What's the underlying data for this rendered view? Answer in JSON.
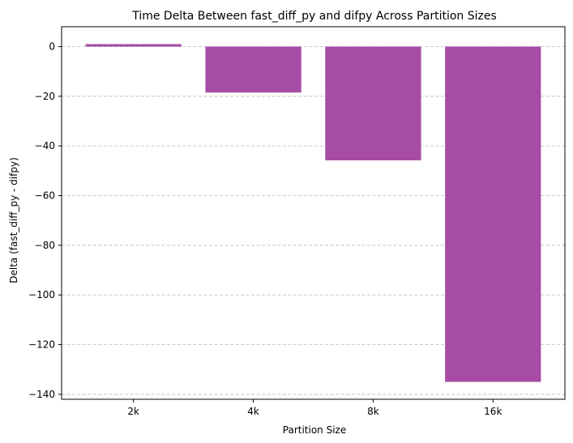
{
  "chart_data": {
    "type": "bar",
    "title": "Time Delta Between fast_diff_py and difpy Across Partition Sizes",
    "xlabel": "Partition Size",
    "ylabel": "Delta (fast_diff_py - difpy)",
    "categories": [
      "2k",
      "4k",
      "8k",
      "16k"
    ],
    "values": [
      1,
      -18.5,
      -45.8,
      -135
    ],
    "ylim": [
      -142,
      8
    ],
    "yticks": [
      0,
      -20,
      -40,
      -60,
      -80,
      -100,
      -120,
      -140
    ],
    "ytick_labels": [
      "0",
      "−20",
      "−40",
      "−60",
      "−80",
      "−100",
      "−120",
      "−140"
    ],
    "grid": {
      "axis": "y",
      "style": "dashed"
    },
    "bar_color": "#a64ca6"
  }
}
